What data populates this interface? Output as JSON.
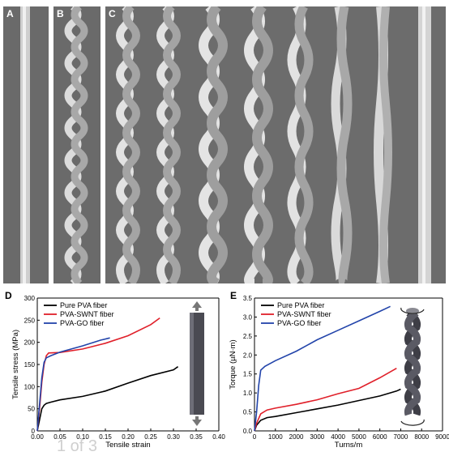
{
  "figure": {
    "panel_labels": [
      "A",
      "B",
      "C",
      "D",
      "E"
    ],
    "watermark": "1 of 3"
  },
  "chart_data": [
    {
      "type": "line",
      "panel": "D",
      "xlabel": "Tensile strain",
      "ylabel": "Tensile stress (MPa)",
      "xlim": [
        0.0,
        0.4
      ],
      "ylim": [
        0,
        300
      ],
      "xticks": [
        "0.00",
        "0.05",
        "0.10",
        "0.15",
        "0.20",
        "0.25",
        "0.30",
        "0.35",
        "0.40"
      ],
      "yticks": [
        "0",
        "50",
        "100",
        "150",
        "200",
        "250",
        "300"
      ],
      "legend": "top-left",
      "series": [
        {
          "name": "Pure PVA fiber",
          "color": "#000000",
          "x": [
            0,
            0.005,
            0.01,
            0.015,
            0.02,
            0.03,
            0.05,
            0.1,
            0.15,
            0.2,
            0.25,
            0.3,
            0.31
          ],
          "y": [
            0,
            25,
            50,
            58,
            62,
            65,
            70,
            78,
            90,
            108,
            125,
            138,
            145
          ]
        },
        {
          "name": "PVA-SWNT fiber",
          "color": "#e0202a",
          "x": [
            0,
            0.005,
            0.01,
            0.015,
            0.02,
            0.025,
            0.05,
            0.1,
            0.15,
            0.2,
            0.25,
            0.27
          ],
          "y": [
            0,
            50,
            110,
            150,
            170,
            176,
            177,
            185,
            198,
            215,
            240,
            255
          ]
        },
        {
          "name": "PVA-GO fiber",
          "color": "#2244aa",
          "x": [
            0,
            0.005,
            0.01,
            0.015,
            0.02,
            0.03,
            0.05,
            0.1,
            0.14,
            0.16
          ],
          "y": [
            0,
            60,
            120,
            155,
            165,
            170,
            178,
            192,
            205,
            210
          ]
        }
      ]
    },
    {
      "type": "line",
      "panel": "E",
      "xlabel": "Turns/m",
      "ylabel": "Torque (µN·m)",
      "xlim": [
        0,
        9000
      ],
      "ylim": [
        0,
        3.5
      ],
      "xticks": [
        "0",
        "1000",
        "2000",
        "3000",
        "4000",
        "5000",
        "6000",
        "7000",
        "8000",
        "9000"
      ],
      "yticks": [
        "0.0",
        "0.5",
        "1.0",
        "1.5",
        "2.0",
        "2.5",
        "3.0",
        "3.5"
      ],
      "legend": "top-left",
      "series": [
        {
          "name": "Pure PVA fiber",
          "color": "#000000",
          "x": [
            0,
            100,
            300,
            600,
            1000,
            2000,
            3000,
            4000,
            5000,
            6000,
            6800,
            7000
          ],
          "y": [
            0,
            0.15,
            0.28,
            0.35,
            0.38,
            0.48,
            0.58,
            0.68,
            0.8,
            0.92,
            1.05,
            1.1
          ]
        },
        {
          "name": "PVA-SWNT fiber",
          "color": "#e0202a",
          "x": [
            0,
            100,
            300,
            600,
            1000,
            2000,
            3000,
            4000,
            5000,
            6000,
            6800
          ],
          "y": [
            0,
            0.2,
            0.45,
            0.55,
            0.6,
            0.7,
            0.82,
            0.98,
            1.12,
            1.4,
            1.65
          ]
        },
        {
          "name": "PVA-GO fiber",
          "color": "#2244aa",
          "x": [
            0,
            100,
            200,
            300,
            500,
            1000,
            2000,
            3000,
            4000,
            5000,
            6000,
            6500
          ],
          "y": [
            0,
            0.5,
            1.2,
            1.6,
            1.7,
            1.85,
            2.1,
            2.4,
            2.65,
            2.9,
            3.15,
            3.28
          ]
        }
      ]
    }
  ]
}
